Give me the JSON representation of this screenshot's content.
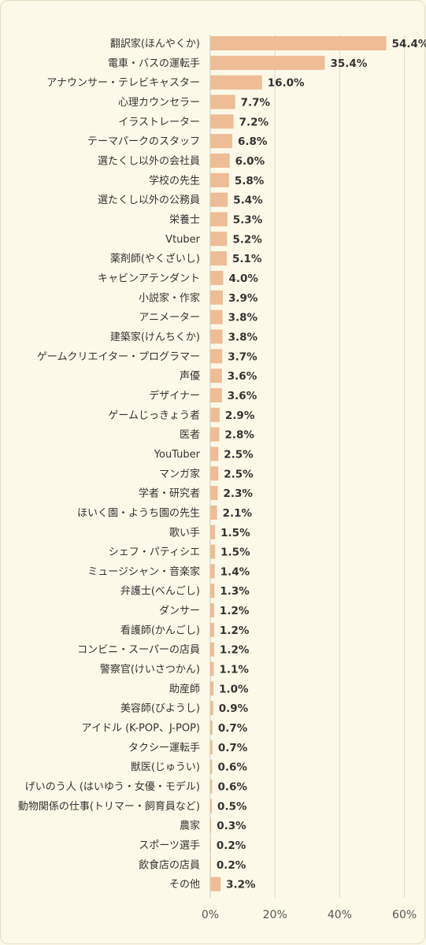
{
  "chart_data": {
    "type": "bar",
    "orientation": "horizontal",
    "title": "",
    "xlabel": "",
    "ylabel": "",
    "xlim": [
      0,
      60
    ],
    "xticks": [
      "0%",
      "20%",
      "40%",
      "60%"
    ],
    "grid": true,
    "bar_color": "#eebc95",
    "categories": [
      "翻訳家(ほんやくか)",
      "電車・バスの運転手",
      "アナウンサー・テレビキャスター",
      "心理カウンセラー",
      "イラストレーター",
      "テーマパークのスタッフ",
      "選たくし以外の会社員",
      "学校の先生",
      "選たくし以外の公務員",
      "栄養士",
      "Vtuber",
      "薬剤師(やくざいし)",
      "キャビンアテンダント",
      "小説家・作家",
      "アニメーター",
      "建築家(けんちくか)",
      "ゲームクリエイター・プログラマー",
      "声優",
      "デザイナー",
      "ゲームじっきょう者",
      "医者",
      "YouTuber",
      "マンガ家",
      "学者・研究者",
      "ほいく園・ようち園の先生",
      "歌い手",
      "シェフ・パティシエ",
      "ミュージシャン・音楽家",
      "弁護士(べんごし)",
      "ダンサー",
      "看護師(かんごし)",
      "コンビニ・スーパーの店員",
      "警察官(けいさつかん)",
      "助産師",
      "美容師(びようし)",
      "アイドル (K-POP、J-POP)",
      "タクシー運転手",
      "獣医(じゅうい)",
      "げいのう人 (はいゆう・女優・モデル)",
      "動物関係の仕事(トリマー・飼育員など)",
      "農家",
      "スポーツ選手",
      "飲食店の店員",
      "その他"
    ],
    "values": [
      54.4,
      35.4,
      16.0,
      7.7,
      7.2,
      6.8,
      6.0,
      5.8,
      5.4,
      5.3,
      5.2,
      5.1,
      4.0,
      3.9,
      3.8,
      3.8,
      3.7,
      3.6,
      3.6,
      2.9,
      2.8,
      2.5,
      2.5,
      2.3,
      2.1,
      1.5,
      1.5,
      1.4,
      1.3,
      1.2,
      1.2,
      1.2,
      1.1,
      1.0,
      0.9,
      0.7,
      0.7,
      0.6,
      0.6,
      0.5,
      0.3,
      0.2,
      0.2,
      3.2
    ],
    "value_labels": [
      "54.4%",
      "35.4%",
      "16.0%",
      "7.7%",
      "7.2%",
      "6.8%",
      "6.0%",
      "5.8%",
      "5.4%",
      "5.3%",
      "5.2%",
      "5.1%",
      "4.0%",
      "3.9%",
      "3.8%",
      "3.8%",
      "3.7%",
      "3.6%",
      "3.6%",
      "2.9%",
      "2.8%",
      "2.5%",
      "2.5%",
      "2.3%",
      "2.1%",
      "1.5%",
      "1.5%",
      "1.4%",
      "1.3%",
      "1.2%",
      "1.2%",
      "1.2%",
      "1.1%",
      "1.0%",
      "0.9%",
      "0.7%",
      "0.7%",
      "0.6%",
      "0.6%",
      "0.5%",
      "0.3%",
      "0.2%",
      "0.2%",
      "3.2%"
    ]
  }
}
